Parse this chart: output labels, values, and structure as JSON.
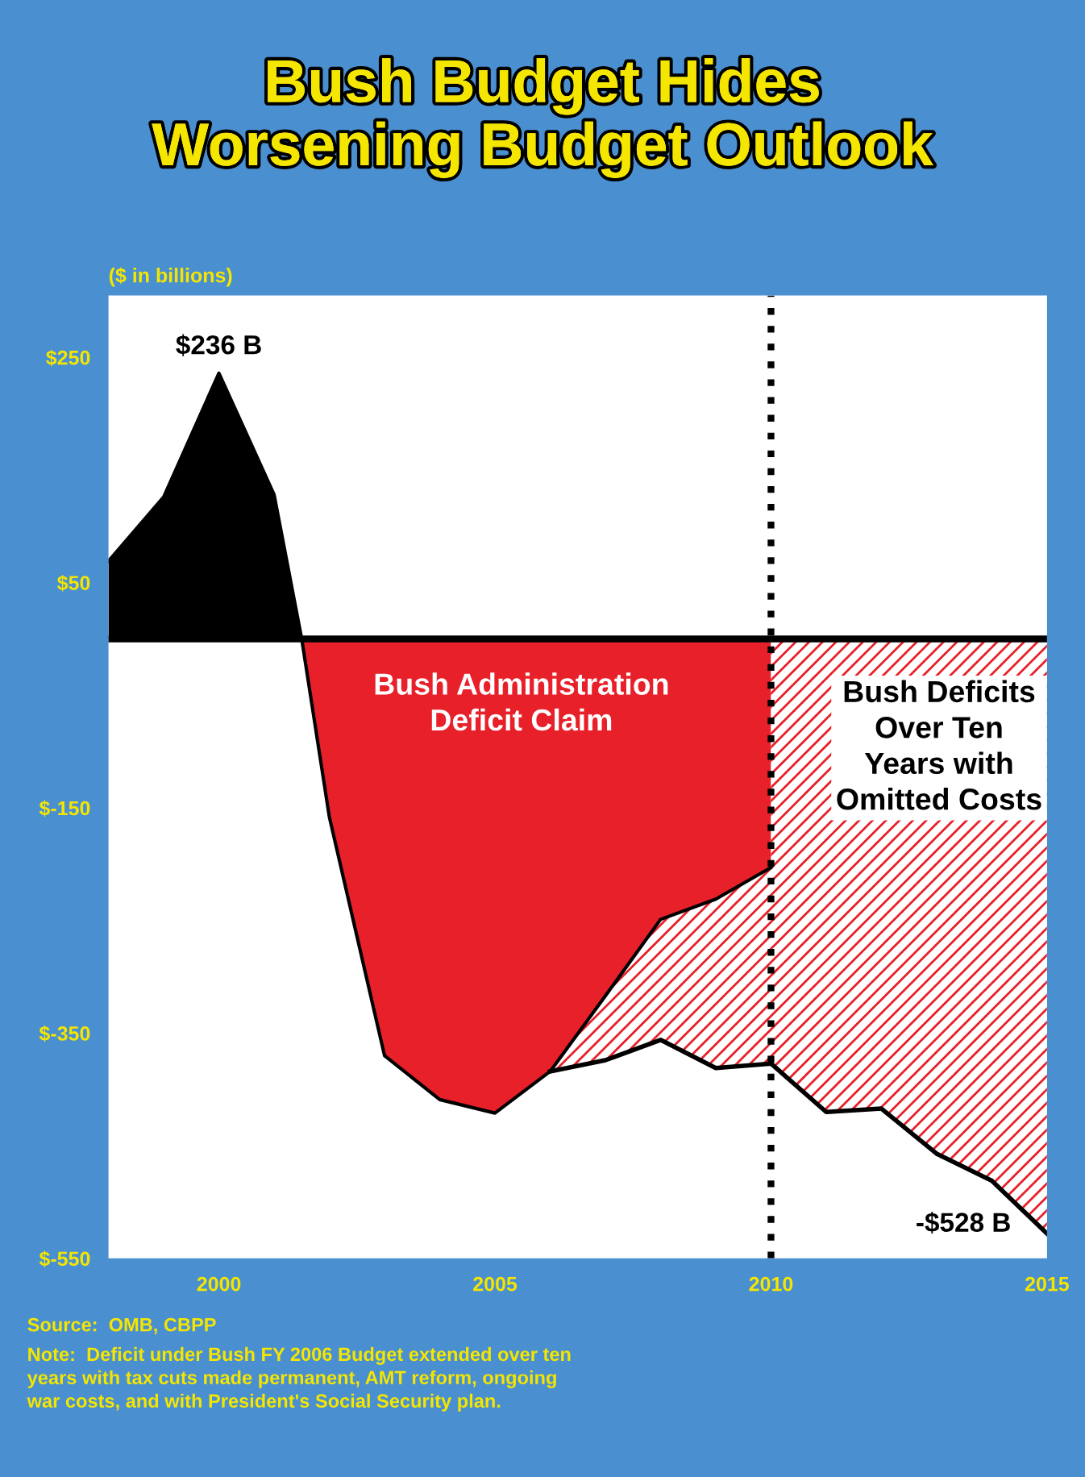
{
  "chart_data": {
    "type": "area",
    "title": "Bush Budget Hides\nWorsening Budget Outlook",
    "ylabel": "($ in billions)",
    "xlim": [
      1998,
      2015
    ],
    "xticks": [
      2000,
      2005,
      2010,
      2015
    ],
    "ylim": [
      -550,
      305
    ],
    "yticks": [
      {
        "value": 250,
        "label": "$250"
      },
      {
        "value": 50,
        "label": "$50"
      },
      {
        "value": -150,
        "label": "$-150"
      },
      {
        "value": -350,
        "label": "$-350"
      },
      {
        "value": -550,
        "label": "$-550"
      }
    ],
    "grid": false,
    "legend": false,
    "series": [
      {
        "color": "#000000",
        "x": [
          1998,
          1999,
          2000,
          2001,
          2001.5
        ],
        "values": [
          69,
          126,
          236,
          128,
          0
        ]
      },
      {
        "name": "Bush Administration Deficit Claim",
        "color": "#e8202a",
        "x": [
          2001.5,
          2002,
          2003,
          2004,
          2005,
          2006,
          2007,
          2008,
          2009,
          2010
        ],
        "values": [
          0,
          -158,
          -370,
          -409,
          -421,
          -384,
          -317,
          -249,
          -231,
          -203
        ]
      },
      {
        "name": "Bush Deficits Over Ten Years with Omitted Costs",
        "color": "#e8202a",
        "x": [
          2006,
          2007,
          2008,
          2009,
          2010,
          2011,
          2012,
          2013,
          2014,
          2015
        ],
        "values": [
          -384,
          -374,
          -356,
          -381,
          -377,
          -420,
          -417,
          -457,
          -481,
          -528
        ]
      }
    ],
    "ref_lines": [
      {
        "axis": "y",
        "value": 0,
        "label": null,
        "color": "#000000",
        "line_style": "solid"
      },
      {
        "axis": "x",
        "value": 2010,
        "label": null,
        "color": "#000000",
        "line_style": "dotted"
      }
    ],
    "annotations": [
      {
        "text": "$236 B",
        "x": 2000,
        "y": 236
      },
      {
        "text": "-$528 B",
        "x": 2015,
        "y": -528
      },
      "Source:  OMB, CBPP",
      "Note:  Deficit under Bush FY 2006 Budget extended over ten\nyears with tax cuts made permanent, AMT reform, ongoing\nwar costs, and with President's Social Security plan."
    ]
  }
}
